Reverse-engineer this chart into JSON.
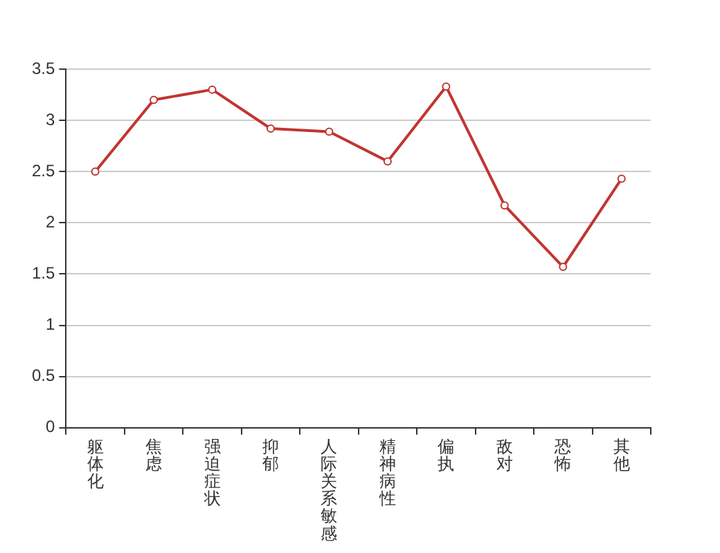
{
  "chart_data": {
    "type": "line",
    "categories": [
      "躯体化",
      "焦虑",
      "强迫症状",
      "抑郁",
      "人际关系敏感",
      "精神病性",
      "偏执",
      "敌对",
      "恐怖",
      "其他"
    ],
    "series": [
      {
        "color": "#c23531",
        "values": [
          2.5,
          3.2,
          3.3,
          2.92,
          2.89,
          2.6,
          3.33,
          2.17,
          1.57,
          2.43
        ]
      }
    ],
    "ylim": [
      0,
      3.5
    ],
    "yticks": [
      0,
      0.5,
      1,
      1.5,
      2,
      2.5,
      3,
      3.5
    ],
    "grid": "y",
    "legend": false,
    "marker": "circle",
    "line_style": "solid"
  }
}
